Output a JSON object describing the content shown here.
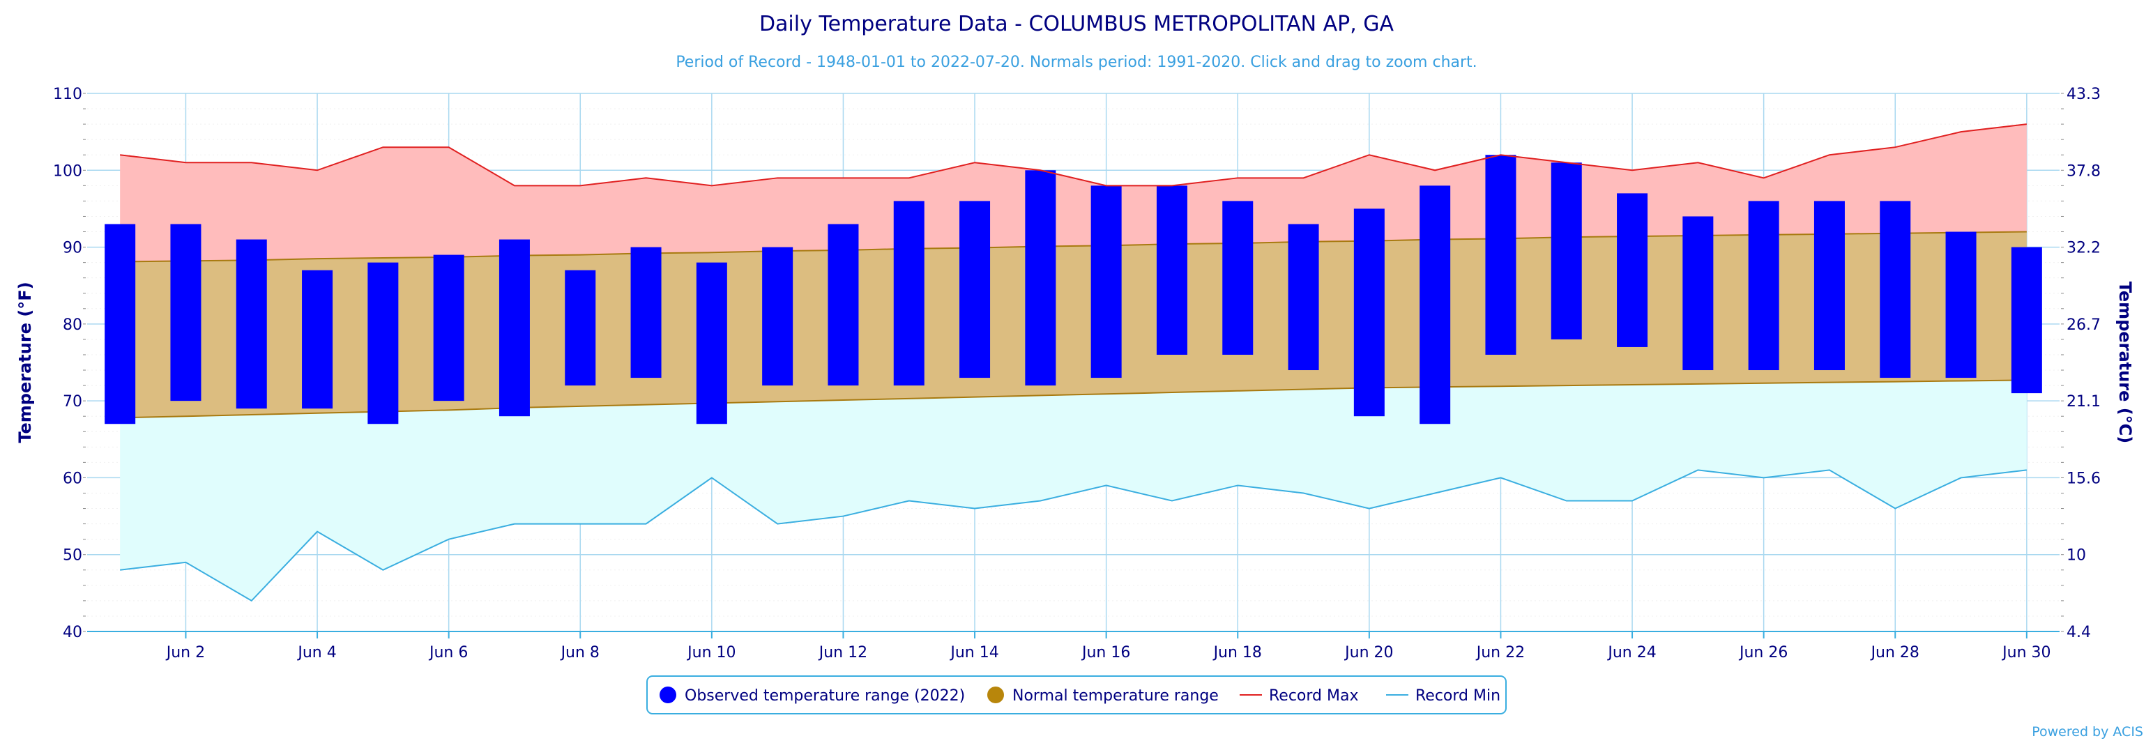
{
  "chart_data": {
    "type": "bar",
    "title": "Daily Temperature Data - COLUMBUS METROPOLITAN AP, GA",
    "subtitle": "Period of Record - 1948-01-01 to 2022-07-20. Normals period: 1991-2020. Click and drag to zoom chart.",
    "credit": "Powered by ACIS",
    "ylabel": "Temperature (°F)",
    "ylabel_right": "Temperature (°C)",
    "ylim": [
      40,
      110
    ],
    "yticks": [
      40,
      50,
      60,
      70,
      80,
      90,
      100,
      110
    ],
    "yticks_right": [
      "4.4",
      "10",
      "15.6",
      "21.1",
      "26.7",
      "32.2",
      "37.8",
      "43.3"
    ],
    "xlim": [
      0.5,
      30.5
    ],
    "xticks": [
      {
        "day": 2,
        "label": "Jun 2"
      },
      {
        "day": 4,
        "label": "Jun 4"
      },
      {
        "day": 6,
        "label": "Jun 6"
      },
      {
        "day": 8,
        "label": "Jun 8"
      },
      {
        "day": 10,
        "label": "Jun 10"
      },
      {
        "day": 12,
        "label": "Jun 12"
      },
      {
        "day": 14,
        "label": "Jun 14"
      },
      {
        "day": 16,
        "label": "Jun 16"
      },
      {
        "day": 18,
        "label": "Jun 18"
      },
      {
        "day": 20,
        "label": "Jun 20"
      },
      {
        "day": 22,
        "label": "Jun 22"
      },
      {
        "day": 24,
        "label": "Jun 24"
      },
      {
        "day": 26,
        "label": "Jun 26"
      },
      {
        "day": 28,
        "label": "Jun 28"
      },
      {
        "day": 30,
        "label": "Jun 30"
      }
    ],
    "days": [
      1,
      2,
      3,
      4,
      5,
      6,
      7,
      8,
      9,
      10,
      11,
      12,
      13,
      14,
      15,
      16,
      17,
      18,
      19,
      20,
      21,
      22,
      23,
      24,
      25,
      26,
      27,
      28,
      29,
      30
    ],
    "legend_position": "bottom-center",
    "grid": true,
    "series": [
      {
        "name": "Observed temperature range (2022)",
        "color": "#0000ff",
        "high": [
          93,
          93,
          91,
          87,
          88,
          89,
          91,
          87,
          90,
          88,
          90,
          93,
          96,
          96,
          100,
          98,
          98,
          96,
          93,
          95,
          98,
          102,
          101,
          97,
          94,
          96,
          96,
          96,
          92,
          90
        ],
        "low": [
          67,
          70,
          69,
          69,
          67,
          70,
          68,
          72,
          73,
          67,
          72,
          72,
          72,
          73,
          72,
          73,
          76,
          76,
          74,
          68,
          67,
          76,
          78,
          77,
          74,
          74,
          74,
          73,
          73,
          71
        ]
      },
      {
        "name": "Normal temperature range",
        "color": "#b8860b",
        "high": [
          88.1,
          88.2,
          88.3,
          88.5,
          88.6,
          88.7,
          88.9,
          89.0,
          89.2,
          89.3,
          89.5,
          89.6,
          89.8,
          89.9,
          90.1,
          90.2,
          90.4,
          90.5,
          90.7,
          90.8,
          91.0,
          91.1,
          91.3,
          91.4,
          91.5,
          91.6,
          91.7,
          91.8,
          91.9,
          92.0
        ],
        "low": [
          67.8,
          68.0,
          68.2,
          68.4,
          68.6,
          68.8,
          69.1,
          69.3,
          69.5,
          69.7,
          69.9,
          70.1,
          70.3,
          70.5,
          70.7,
          70.9,
          71.1,
          71.3,
          71.5,
          71.7,
          71.8,
          71.9,
          72.0,
          72.1,
          72.2,
          72.3,
          72.4,
          72.5,
          72.6,
          72.7
        ]
      },
      {
        "name": "Record Max",
        "color": "#e02020",
        "values": [
          102,
          101,
          101,
          100,
          103,
          103,
          98,
          98,
          99,
          98,
          99,
          99,
          99,
          101,
          100,
          98,
          98,
          99,
          99,
          102,
          100,
          102,
          101,
          100,
          101,
          99,
          102,
          103,
          105,
          106
        ]
      },
      {
        "name": "Record Min",
        "color": "#3aaee0",
        "values": [
          48,
          49,
          44,
          53,
          48,
          52,
          54,
          54,
          54,
          60,
          54,
          55,
          57,
          56,
          57,
          59,
          57,
          59,
          58,
          56,
          58,
          60,
          57,
          57,
          61,
          60,
          61,
          56,
          60,
          61
        ]
      }
    ]
  }
}
